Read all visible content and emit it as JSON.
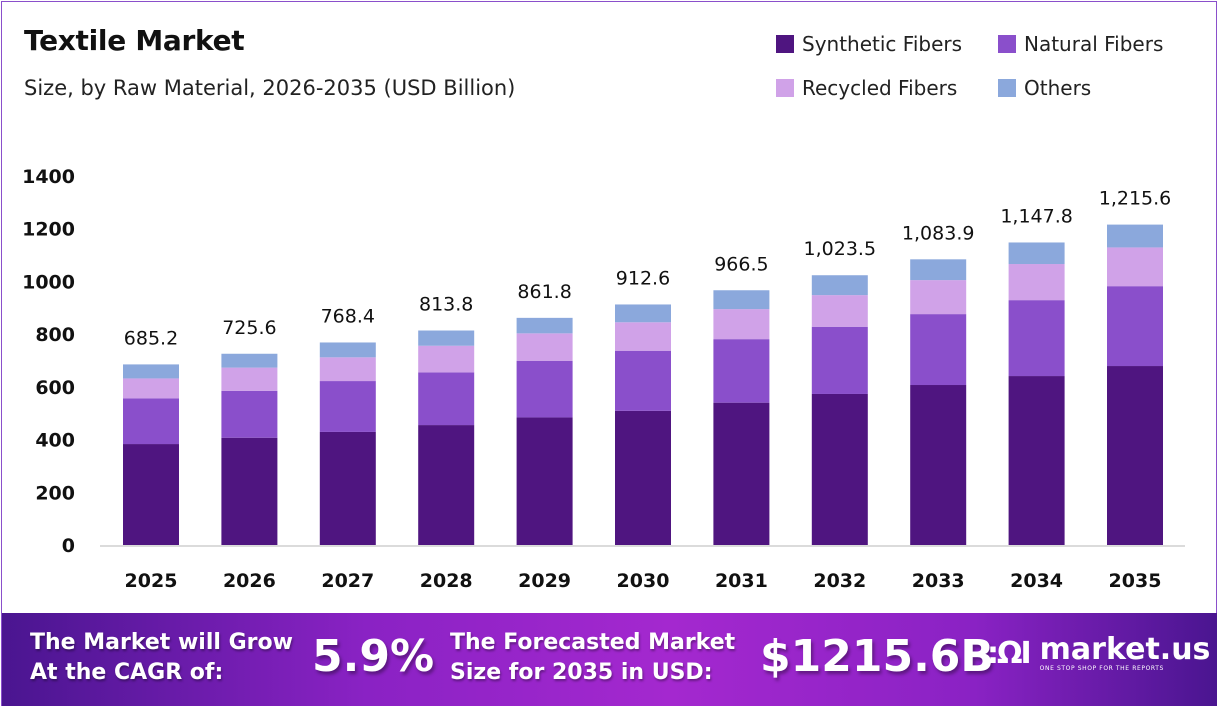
{
  "chart_data": {
    "type": "bar",
    "stacked": true,
    "title": "Textile Market",
    "subtitle": "Size, by Raw Material, 2026-2035 (USD Billion)",
    "categories": [
      "2025",
      "2026",
      "2027",
      "2028",
      "2029",
      "2030",
      "2031",
      "2032",
      "2033",
      "2034",
      "2035"
    ],
    "series": [
      {
        "name": "Synthetic Fibers",
        "color": "#4f1580",
        "values": [
          383,
          407,
          429,
          455,
          484,
          509,
          540,
          573,
          607,
          641,
          679
        ]
      },
      {
        "name": "Natural Fibers",
        "color": "#8a4fcb",
        "values": [
          173,
          178,
          193,
          200,
          215,
          228,
          241,
          255,
          269,
          288,
          303
        ]
      },
      {
        "name": "Recycled Fibers",
        "color": "#d0a2e8",
        "values": [
          76,
          88,
          90,
          101,
          104,
          108,
          114,
          120,
          129,
          137,
          147
        ]
      },
      {
        "name": "Others",
        "color": "#8ba8dc",
        "values": [
          53.2,
          52.6,
          56.4,
          57.8,
          58.8,
          67.6,
          71.5,
          75.5,
          78.9,
          81.8,
          86.6
        ]
      }
    ],
    "totals": [
      685.2,
      725.6,
      768.4,
      813.8,
      861.8,
      912.6,
      966.5,
      1023.5,
      1083.9,
      1147.8,
      1215.6
    ],
    "total_labels": [
      "685.2",
      "725.6",
      "768.4",
      "813.8",
      "861.8",
      "912.6",
      "966.5",
      "1,023.5",
      "1,083.9",
      "1,147.8",
      "1,215.6"
    ],
    "yticks": [
      0,
      200,
      400,
      600,
      800,
      1000,
      1200,
      1400
    ],
    "ylim": [
      0,
      1400
    ],
    "xlabel": "",
    "ylabel": "",
    "grid": false,
    "legend_position": "top-right"
  },
  "banner": {
    "cagr_label_1": "The Market will Grow",
    "cagr_label_2": "At the CAGR of:",
    "cagr_value": "5.9%",
    "forecast_label_1": "The Forecasted Market",
    "forecast_label_2": "Size for 2035 in USD:",
    "forecast_value": "$1215.6B",
    "brand": "market.us",
    "brand_tagline": "ONE STOP SHOP FOR THE REPORTS"
  }
}
